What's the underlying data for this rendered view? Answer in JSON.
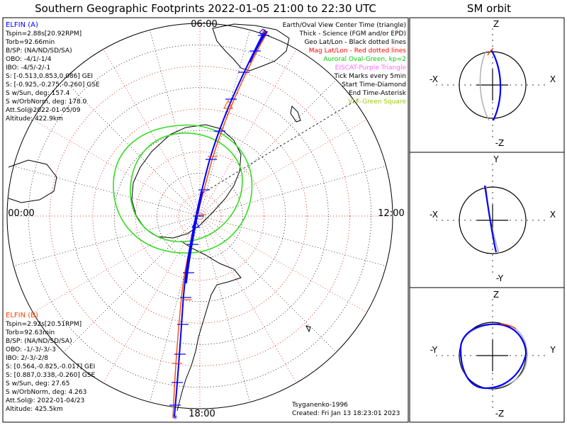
{
  "title": "Southern Geographic Footprints 2022-01-05 21:00 to 22:30 UTC",
  "right_title": "SM orbit",
  "elfin_a": {
    "name": "ELFIN (A)",
    "color": "#0000ff",
    "lines": [
      "Tspin=2.88s[20.92RPM]",
      "Torb=92.66min",
      "B/SP: (NA/ND/SD/SA)",
      "OBO: -4/1/-1/4",
      "IBO: -4/5/-2/-1",
      "S: [-0.513,0.853,0.086] GEI",
      "S: [-0.925,-0.275,-0.260] GSE",
      "S w/Sun, deg: 157.4",
      "S w/OrbNorm, deg: 178.0",
      "Att.Sol@2022-01-05/09",
      "Altitude: 422.9km"
    ]
  },
  "elfin_b": {
    "name": "ELFIN (B)",
    "color": "#ff4500",
    "lines": [
      "Tspin=2.92s[20.51RPM]",
      "Torb=92.63min",
      "B/SP: (NA/ND/SD/SA)",
      "OBO: -1/-3/-3/-3",
      "IBO: 2/-3/-2/8",
      "S: [0.564,-0.825,-0.017] GEI",
      "S: [0.887,0.338,-0.260] GSE",
      "S w/Sun, deg: 27.65",
      "S w/OrbNorm, deg: 4.263",
      "Att.Sol@: 2022-01-04/23",
      "Altitude: 425.5km"
    ]
  },
  "legend": [
    {
      "text": "Earth/Oval View Center Time (triangle)",
      "color": "#000000"
    },
    {
      "text": "Thick - Science (FGM and/or EPD)",
      "color": "#000000"
    },
    {
      "text": "Geo Lat/Lon - Black dotted lines",
      "color": "#000000"
    },
    {
      "text": "Mag Lat/Lon - Red dotted lines",
      "color": "#ff0000"
    },
    {
      "text": "Auroral Oval-Green, kp=2",
      "color": "#00cc00"
    },
    {
      "text": "EISCAT-Purple Triangle",
      "color": "#ff66ff"
    },
    {
      "text": "Tick Marks every 5min",
      "color": "#000000"
    },
    {
      "text": "Start Time-Diamond",
      "color": "#000000"
    },
    {
      "text": "End Time-Asterisk",
      "color": "#000000"
    },
    {
      "text": "VLF-Green Square",
      "color": "#99cc00"
    }
  ],
  "map_labels": {
    "top": "06:00",
    "left": "00:00",
    "right": "12:00",
    "bottom": "18:00"
  },
  "footer": {
    "model": "Tsyganenko-1996",
    "created": "Created: Fri Jan 13 18:23:01 2023"
  },
  "orbit_panels": [
    {
      "top": "Z",
      "bottom": "-Z",
      "left": "-X",
      "right": "X"
    },
    {
      "top": "Y",
      "bottom": "-Y",
      "left": "-X",
      "right": "X"
    },
    {
      "top": "Z",
      "bottom": "-Z",
      "left": "-Y",
      "right": "Y"
    }
  ],
  "chart_data": {
    "type": "polar-map",
    "projection": "south polar stereographic",
    "local_time_labels": [
      "06:00",
      "12:00",
      "18:00",
      "00:00"
    ],
    "auroral_oval_kp": 2,
    "tick_interval_min": 5,
    "series": [
      {
        "name": "ELFIN (A)",
        "color": "#0000ff"
      },
      {
        "name": "ELFIN (B)",
        "color": "#ff4500"
      }
    ]
  }
}
